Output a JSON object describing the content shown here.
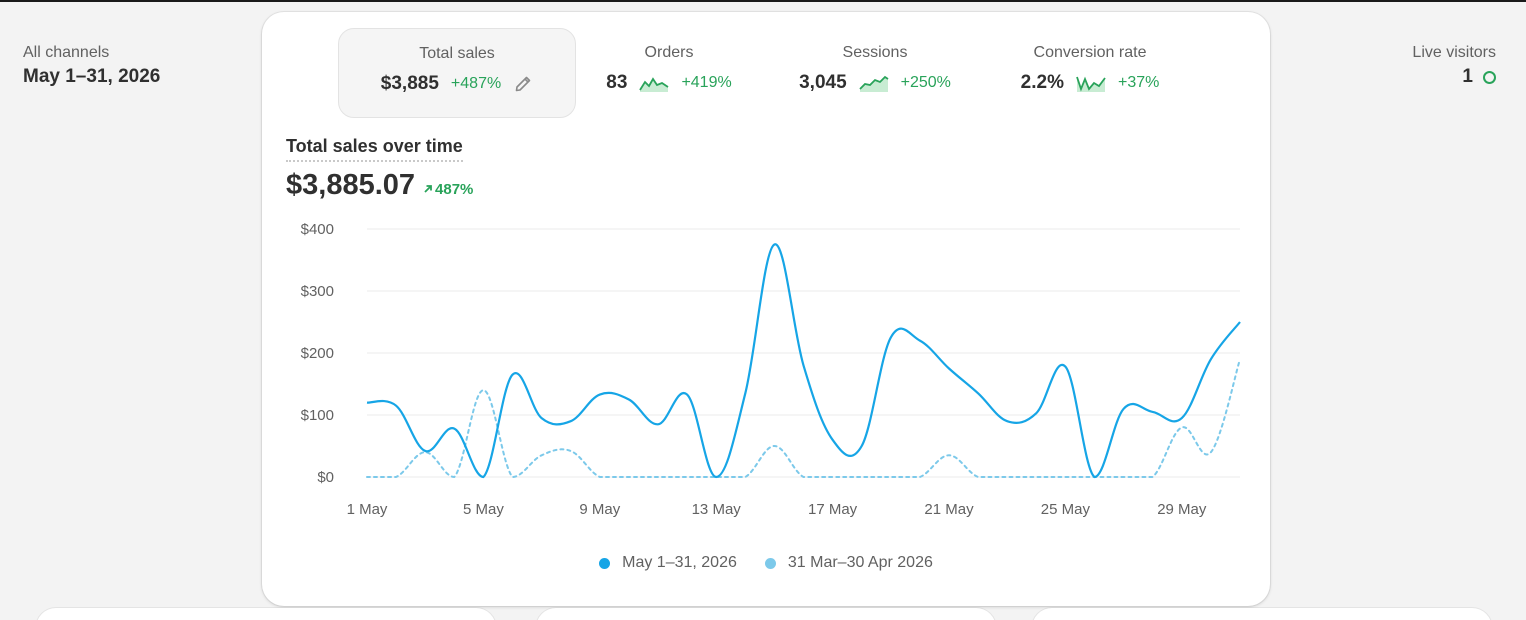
{
  "filters": {
    "channel_label": "All channels",
    "date_range": "May 1–31, 2026"
  },
  "live": {
    "label": "Live visitors",
    "count": "1"
  },
  "metrics": [
    {
      "label": "Total sales",
      "value": "$3,885",
      "change": "+487%"
    },
    {
      "label": "Orders",
      "value": "83",
      "change": "+419%"
    },
    {
      "label": "Sessions",
      "value": "3,045",
      "change": "+250%"
    },
    {
      "label": "Conversion rate",
      "value": "2.2%",
      "change": "+37%"
    }
  ],
  "chart_section": {
    "title": "Total sales over time",
    "total": "$3,885.07",
    "change": "487%"
  },
  "colors": {
    "current": "#16a5e6",
    "previous": "#7cc9ea",
    "positive": "#29a35a"
  },
  "chart_data": {
    "type": "line",
    "y_ticks": [
      "$0",
      "$100",
      "$200",
      "$300",
      "$400"
    ],
    "ylim": [
      0,
      400
    ],
    "x_ticks": [
      "1 May",
      "5 May",
      "9 May",
      "13 May",
      "17 May",
      "21 May",
      "25 May",
      "29 May"
    ],
    "x": [
      "1 May",
      "2 May",
      "3 May",
      "4 May",
      "5 May",
      "6 May",
      "7 May",
      "8 May",
      "9 May",
      "10 May",
      "11 May",
      "12 May",
      "13 May",
      "14 May",
      "15 May",
      "16 May",
      "17 May",
      "18 May",
      "19 May",
      "20 May",
      "21 May",
      "22 May",
      "23 May",
      "24 May",
      "25 May",
      "26 May",
      "27 May",
      "28 May",
      "29 May",
      "30 May",
      "31 May"
    ],
    "series": [
      {
        "name": "May 1–31, 2026",
        "values": [
          120,
          115,
          42,
          78,
          0,
          165,
          95,
          90,
          133,
          125,
          85,
          133,
          0,
          135,
          375,
          180,
          60,
          50,
          225,
          220,
          175,
          135,
          90,
          103,
          178,
          0,
          110,
          105,
          95,
          190,
          250
        ],
        "style": "solid"
      },
      {
        "name": "31 Mar–30 Apr 2026",
        "values": [
          0,
          0,
          40,
          0,
          140,
          0,
          35,
          42,
          0,
          0,
          0,
          0,
          0,
          0,
          50,
          0,
          0,
          0,
          0,
          0,
          35,
          0,
          0,
          0,
          0,
          0,
          0,
          0,
          80,
          40,
          190
        ],
        "style": "dotted"
      }
    ],
    "legend_position": "bottom"
  }
}
